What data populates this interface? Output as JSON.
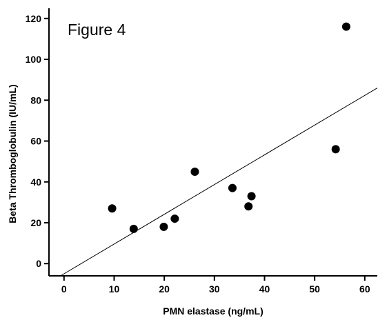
{
  "chart_data": {
    "type": "scatter",
    "title": "Figure 4",
    "xlabel": "PMN elastase (ng/mL)",
    "ylabel": "Beta Thromboglobulin (IU/mL)",
    "xlim": [
      -3,
      62.5
    ],
    "ylim": [
      -6,
      125
    ],
    "x_ticks": [
      0,
      10,
      20,
      30,
      40,
      50,
      60
    ],
    "y_ticks": [
      0,
      20,
      40,
      60,
      80,
      100,
      120
    ],
    "grid": false,
    "legend": "none",
    "colors": {
      "point": "#000000",
      "axis": "#000000",
      "line": "#000000"
    },
    "points": [
      {
        "x": 9.6,
        "y": 27
      },
      {
        "x": 13.9,
        "y": 17
      },
      {
        "x": 19.9,
        "y": 18
      },
      {
        "x": 22.1,
        "y": 22
      },
      {
        "x": 26.1,
        "y": 45
      },
      {
        "x": 33.6,
        "y": 37
      },
      {
        "x": 36.8,
        "y": 28
      },
      {
        "x": 37.4,
        "y": 33
      },
      {
        "x": 54.2,
        "y": 56
      },
      {
        "x": 56.3,
        "y": 116
      }
    ],
    "fit_line": {
      "x": [
        -0.7,
        62.5
      ],
      "y": [
        -6,
        86
      ]
    }
  }
}
